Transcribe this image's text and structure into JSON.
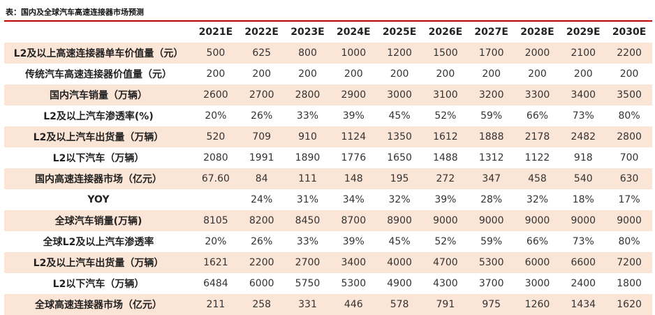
{
  "caption": "表：国内及全球汽车高速连接器市场预测",
  "table": {
    "headers": [
      "",
      "2021E",
      "2022E",
      "2023E",
      "2024E",
      "2025E",
      "2026E",
      "2027E",
      "2028E",
      "2029E",
      "2030E"
    ],
    "rows": [
      {
        "label": "L2及以上高速连接器单车价值量（元）",
        "values": [
          "500",
          "625",
          "800",
          "1000",
          "1200",
          "1500",
          "1700",
          "2000",
          "2100",
          "2200"
        ]
      },
      {
        "label": "传统汽车高速连接器价值量（元）",
        "values": [
          "200",
          "200",
          "200",
          "200",
          "200",
          "200",
          "200",
          "200",
          "200",
          "200"
        ]
      },
      {
        "label": "国内汽车销量（万辆）",
        "values": [
          "2600",
          "2700",
          "2800",
          "2900",
          "3000",
          "3100",
          "3200",
          "3300",
          "3400",
          "3500"
        ]
      },
      {
        "label": "L2及以上汽车渗透率(%)",
        "values": [
          "20%",
          "26%",
          "33%",
          "39%",
          "45%",
          "52%",
          "59%",
          "66%",
          "73%",
          "80%"
        ]
      },
      {
        "label": "L2及以上汽车出货量（万辆）",
        "values": [
          "520",
          "709",
          "910",
          "1124",
          "1350",
          "1612",
          "1888",
          "2178",
          "2482",
          "2800"
        ]
      },
      {
        "label": "L2以下汽车（万辆）",
        "values": [
          "2080",
          "1991",
          "1890",
          "1776",
          "1650",
          "1488",
          "1312",
          "1122",
          "918",
          "700"
        ]
      },
      {
        "label": "国内高速连接器市场（亿元）",
        "values": [
          "67.60",
          "84",
          "111",
          "148",
          "195",
          "272",
          "347",
          "458",
          "540",
          "630"
        ]
      },
      {
        "label": "YOY",
        "values": [
          "",
          "24%",
          "31%",
          "34%",
          "32%",
          "39%",
          "28%",
          "32%",
          "18%",
          "17%"
        ]
      },
      {
        "label": "全球汽车销量(万辆)",
        "values": [
          "8105",
          "8200",
          "8450",
          "8700",
          "8900",
          "9000",
          "9000",
          "9000",
          "9000",
          "9000"
        ]
      },
      {
        "label": "全球L2及以上汽车渗透率",
        "values": [
          "20%",
          "26%",
          "33%",
          "39%",
          "45%",
          "52%",
          "59%",
          "66%",
          "73%",
          "80%"
        ]
      },
      {
        "label": "L2及以上汽车出货量（万辆）",
        "values": [
          "1621",
          "2200",
          "2700",
          "3400",
          "4000",
          "4700",
          "5300",
          "6000",
          "6600",
          "7200"
        ]
      },
      {
        "label": "L2以下汽车（万辆）",
        "values": [
          "6484",
          "6000",
          "5750",
          "5300",
          "4900",
          "4300",
          "3700",
          "3000",
          "2400",
          "1800"
        ]
      },
      {
        "label": "全球高速连接器市场（亿元）",
        "values": [
          "211",
          "258",
          "331",
          "446",
          "578",
          "791",
          "975",
          "1260",
          "1434",
          "1620"
        ]
      }
    ]
  },
  "colors": {
    "header_rule": "#c00000",
    "stripe": "#fbe5d6"
  }
}
